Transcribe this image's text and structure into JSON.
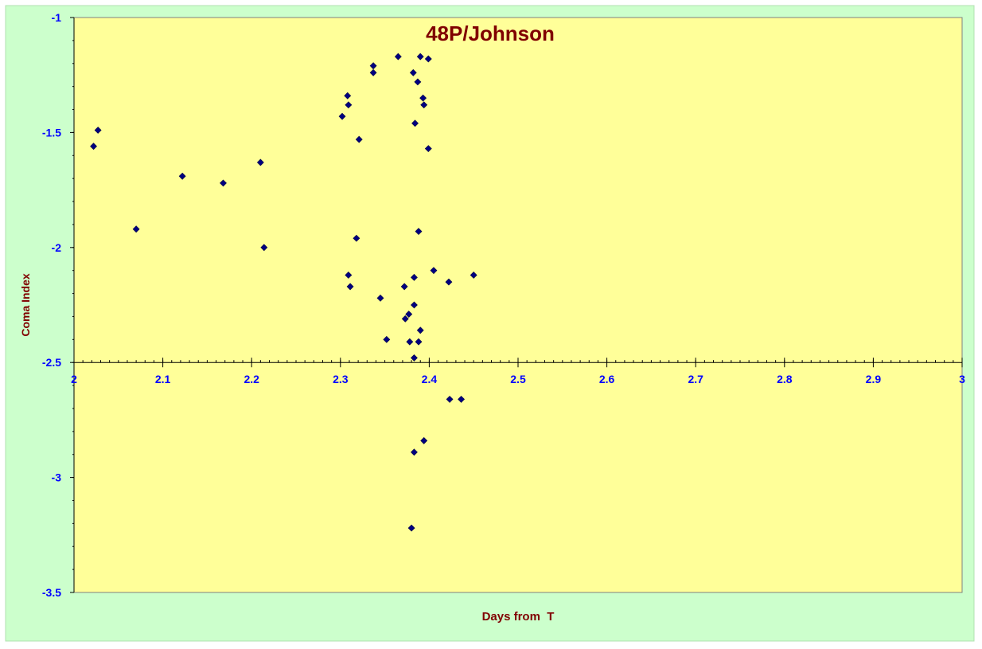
{
  "chart_data": {
    "type": "scatter",
    "title": "48P/Johnson",
    "xlabel": "Days from  T",
    "ylabel": "Coma Index",
    "xlim": [
      2,
      3
    ],
    "ylim": [
      -3.5,
      -1
    ],
    "x_ticks": [
      "2",
      "2.1",
      "2.2",
      "2.3",
      "2.4",
      "2.5",
      "2.6",
      "2.7",
      "2.8",
      "2.9",
      "3"
    ],
    "y_ticks": [
      "-1",
      "-1.5",
      "-2",
      "-2.5",
      "-3",
      "-3.5"
    ],
    "x_axis_crosses_at": -2.5,
    "grid": false,
    "legend": "none",
    "colors": {
      "outer_background": "#ccffcc",
      "plot_background": "#ffff99",
      "title": "#800000",
      "axis_title": "#800000",
      "y_tick_labels": "#0000ff",
      "x_tick_labels": "#0000ff",
      "marker": "#000080"
    },
    "series": [
      {
        "marker": "diamond",
        "points": [
          [
            2.022,
            -1.56
          ],
          [
            2.027,
            -1.49
          ],
          [
            2.07,
            -1.92
          ],
          [
            2.122,
            -1.69
          ],
          [
            2.168,
            -1.72
          ],
          [
            2.21,
            -1.63
          ],
          [
            2.214,
            -2.0
          ],
          [
            2.302,
            -1.43
          ],
          [
            2.308,
            -1.34
          ],
          [
            2.309,
            -1.38
          ],
          [
            2.309,
            -2.12
          ],
          [
            2.311,
            -2.17
          ],
          [
            2.318,
            -1.96
          ],
          [
            2.321,
            -1.53
          ],
          [
            2.337,
            -1.21
          ],
          [
            2.337,
            -1.24
          ],
          [
            2.345,
            -2.22
          ],
          [
            2.352,
            -2.4
          ],
          [
            2.365,
            -1.17
          ],
          [
            2.372,
            -2.17
          ],
          [
            2.373,
            -2.31
          ],
          [
            2.377,
            -2.29
          ],
          [
            2.378,
            -2.41
          ],
          [
            2.38,
            -3.22
          ],
          [
            2.382,
            -1.24
          ],
          [
            2.383,
            -2.13
          ],
          [
            2.383,
            -2.25
          ],
          [
            2.383,
            -2.48
          ],
          [
            2.383,
            -2.89
          ],
          [
            2.384,
            -1.46
          ],
          [
            2.387,
            -1.28
          ],
          [
            2.388,
            -1.93
          ],
          [
            2.388,
            -2.41
          ],
          [
            2.39,
            -1.17
          ],
          [
            2.39,
            -2.36
          ],
          [
            2.393,
            -1.35
          ],
          [
            2.394,
            -1.38
          ],
          [
            2.394,
            -2.84
          ],
          [
            2.399,
            -1.18
          ],
          [
            2.399,
            -1.57
          ],
          [
            2.405,
            -2.1
          ],
          [
            2.422,
            -2.15
          ],
          [
            2.423,
            -2.66
          ],
          [
            2.436,
            -2.66
          ],
          [
            2.45,
            -2.12
          ]
        ]
      }
    ]
  }
}
